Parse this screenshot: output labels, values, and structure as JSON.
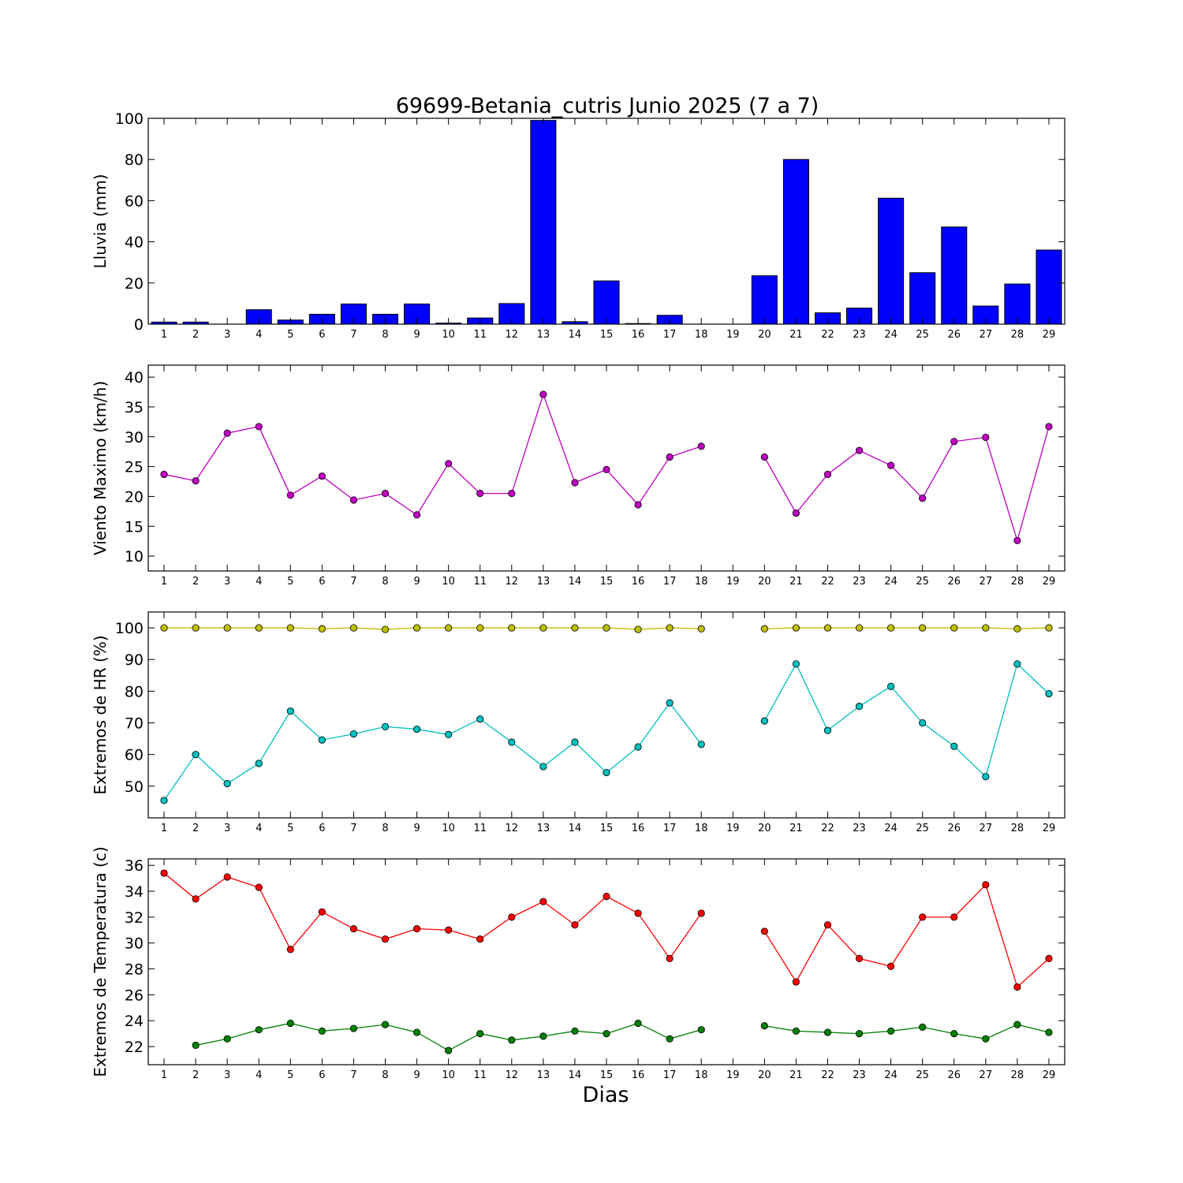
{
  "title": "69699-Betania_cutris Junio 2025  (7 a 7)",
  "xlabel": "Dias",
  "days": [
    1,
    2,
    3,
    4,
    5,
    6,
    7,
    8,
    9,
    10,
    11,
    12,
    13,
    14,
    15,
    16,
    17,
    18,
    19,
    20,
    21,
    22,
    23,
    24,
    25,
    26,
    27,
    28,
    29
  ],
  "chart_data": [
    {
      "type": "bar",
      "ylabel": "Lluvia (mm)",
      "ylim": [
        0,
        100
      ],
      "yticks": [
        0,
        20,
        40,
        60,
        80,
        100
      ],
      "categories": [
        1,
        2,
        3,
        4,
        5,
        6,
        7,
        8,
        9,
        10,
        11,
        12,
        13,
        14,
        15,
        16,
        17,
        18,
        19,
        20,
        21,
        22,
        23,
        24,
        25,
        26,
        27,
        28,
        29
      ],
      "series": [
        {
          "color": "#0000ff",
          "values": [
            1.0,
            1.0,
            0.0,
            7.0,
            2.0,
            4.8,
            9.8,
            4.8,
            9.8,
            0.5,
            3.0,
            10.0,
            99.0,
            1.2,
            21.0,
            0.3,
            4.3,
            0.0,
            0.0,
            23.5,
            80.0,
            5.5,
            7.8,
            61.2,
            25.0,
            47.2,
            8.8,
            19.5,
            36.0
          ]
        }
      ]
    },
    {
      "type": "line",
      "ylabel": "Viento Maximo (km/h)",
      "ylim": [
        7.5,
        42
      ],
      "yticks": [
        10,
        15,
        20,
        25,
        30,
        35,
        40
      ],
      "x": [
        1,
        2,
        3,
        4,
        5,
        6,
        7,
        8,
        9,
        10,
        11,
        12,
        13,
        14,
        15,
        16,
        17,
        18,
        19,
        20,
        21,
        22,
        23,
        24,
        25,
        26,
        27,
        28,
        29
      ],
      "series": [
        {
          "color": "#bf00bf",
          "values": [
            23.7,
            22.6,
            30.6,
            31.7,
            20.2,
            23.4,
            19.4,
            20.5,
            16.9,
            25.5,
            20.5,
            20.5,
            37.1,
            22.3,
            24.5,
            18.6,
            26.6,
            28.4,
            null,
            26.6,
            17.2,
            23.7,
            27.7,
            25.2,
            19.7,
            29.2,
            29.9,
            12.6,
            31.7
          ]
        }
      ]
    },
    {
      "type": "line",
      "ylabel": "Extremos de HR (%)",
      "ylim": [
        40,
        105
      ],
      "yticks": [
        50,
        60,
        70,
        80,
        90,
        100
      ],
      "x": [
        1,
        2,
        3,
        4,
        5,
        6,
        7,
        8,
        9,
        10,
        11,
        12,
        13,
        14,
        15,
        16,
        17,
        18,
        19,
        20,
        21,
        22,
        23,
        24,
        25,
        26,
        27,
        28,
        29
      ],
      "series": [
        {
          "color": "#bfbf00",
          "values": [
            100,
            100,
            100,
            100,
            100,
            99.7,
            100,
            99.5,
            100,
            100,
            100,
            100,
            100,
            100,
            100,
            99.5,
            100,
            99.7,
            null,
            99.7,
            100,
            100,
            100,
            100,
            100,
            100,
            100,
            99.7,
            100
          ]
        },
        {
          "color": "#00bfbf",
          "values": [
            45.5,
            60,
            50.8,
            57.2,
            73.7,
            64.6,
            66.5,
            68.8,
            68,
            66.3,
            71.2,
            63.9,
            56.2,
            63.9,
            54.3,
            62.4,
            76.3,
            63.2,
            null,
            70.6,
            88.6,
            67.6,
            75.2,
            81.5,
            70,
            62.6,
            53,
            88.6,
            79.2
          ]
        }
      ]
    },
    {
      "type": "line",
      "ylabel": "Extremos de Temperatura (c)",
      "ylim": [
        20.6,
        36.5
      ],
      "yticks": [
        22,
        24,
        26,
        28,
        30,
        32,
        34,
        36
      ],
      "x": [
        1,
        2,
        3,
        4,
        5,
        6,
        7,
        8,
        9,
        10,
        11,
        12,
        13,
        14,
        15,
        16,
        17,
        18,
        19,
        20,
        21,
        22,
        23,
        24,
        25,
        26,
        27,
        28,
        29
      ],
      "series": [
        {
          "color": "#ff0000",
          "values": [
            35.4,
            33.4,
            35.1,
            34.3,
            29.5,
            32.4,
            31.1,
            30.3,
            31.1,
            31.0,
            30.3,
            32.0,
            33.2,
            31.4,
            33.6,
            32.3,
            28.8,
            32.3,
            null,
            30.9,
            27.0,
            31.4,
            28.8,
            28.2,
            32.0,
            32.0,
            34.5,
            26.6,
            28.8
          ]
        },
        {
          "color": "#007f00",
          "values": [
            null,
            22.1,
            22.6,
            23.3,
            23.8,
            23.2,
            23.4,
            23.7,
            23.1,
            21.7,
            23.0,
            22.5,
            22.8,
            23.2,
            23.0,
            23.8,
            22.6,
            23.3,
            null,
            23.6,
            23.2,
            23.1,
            23.0,
            23.2,
            23.5,
            23.0,
            22.6,
            23.7,
            23.1
          ]
        }
      ]
    }
  ]
}
